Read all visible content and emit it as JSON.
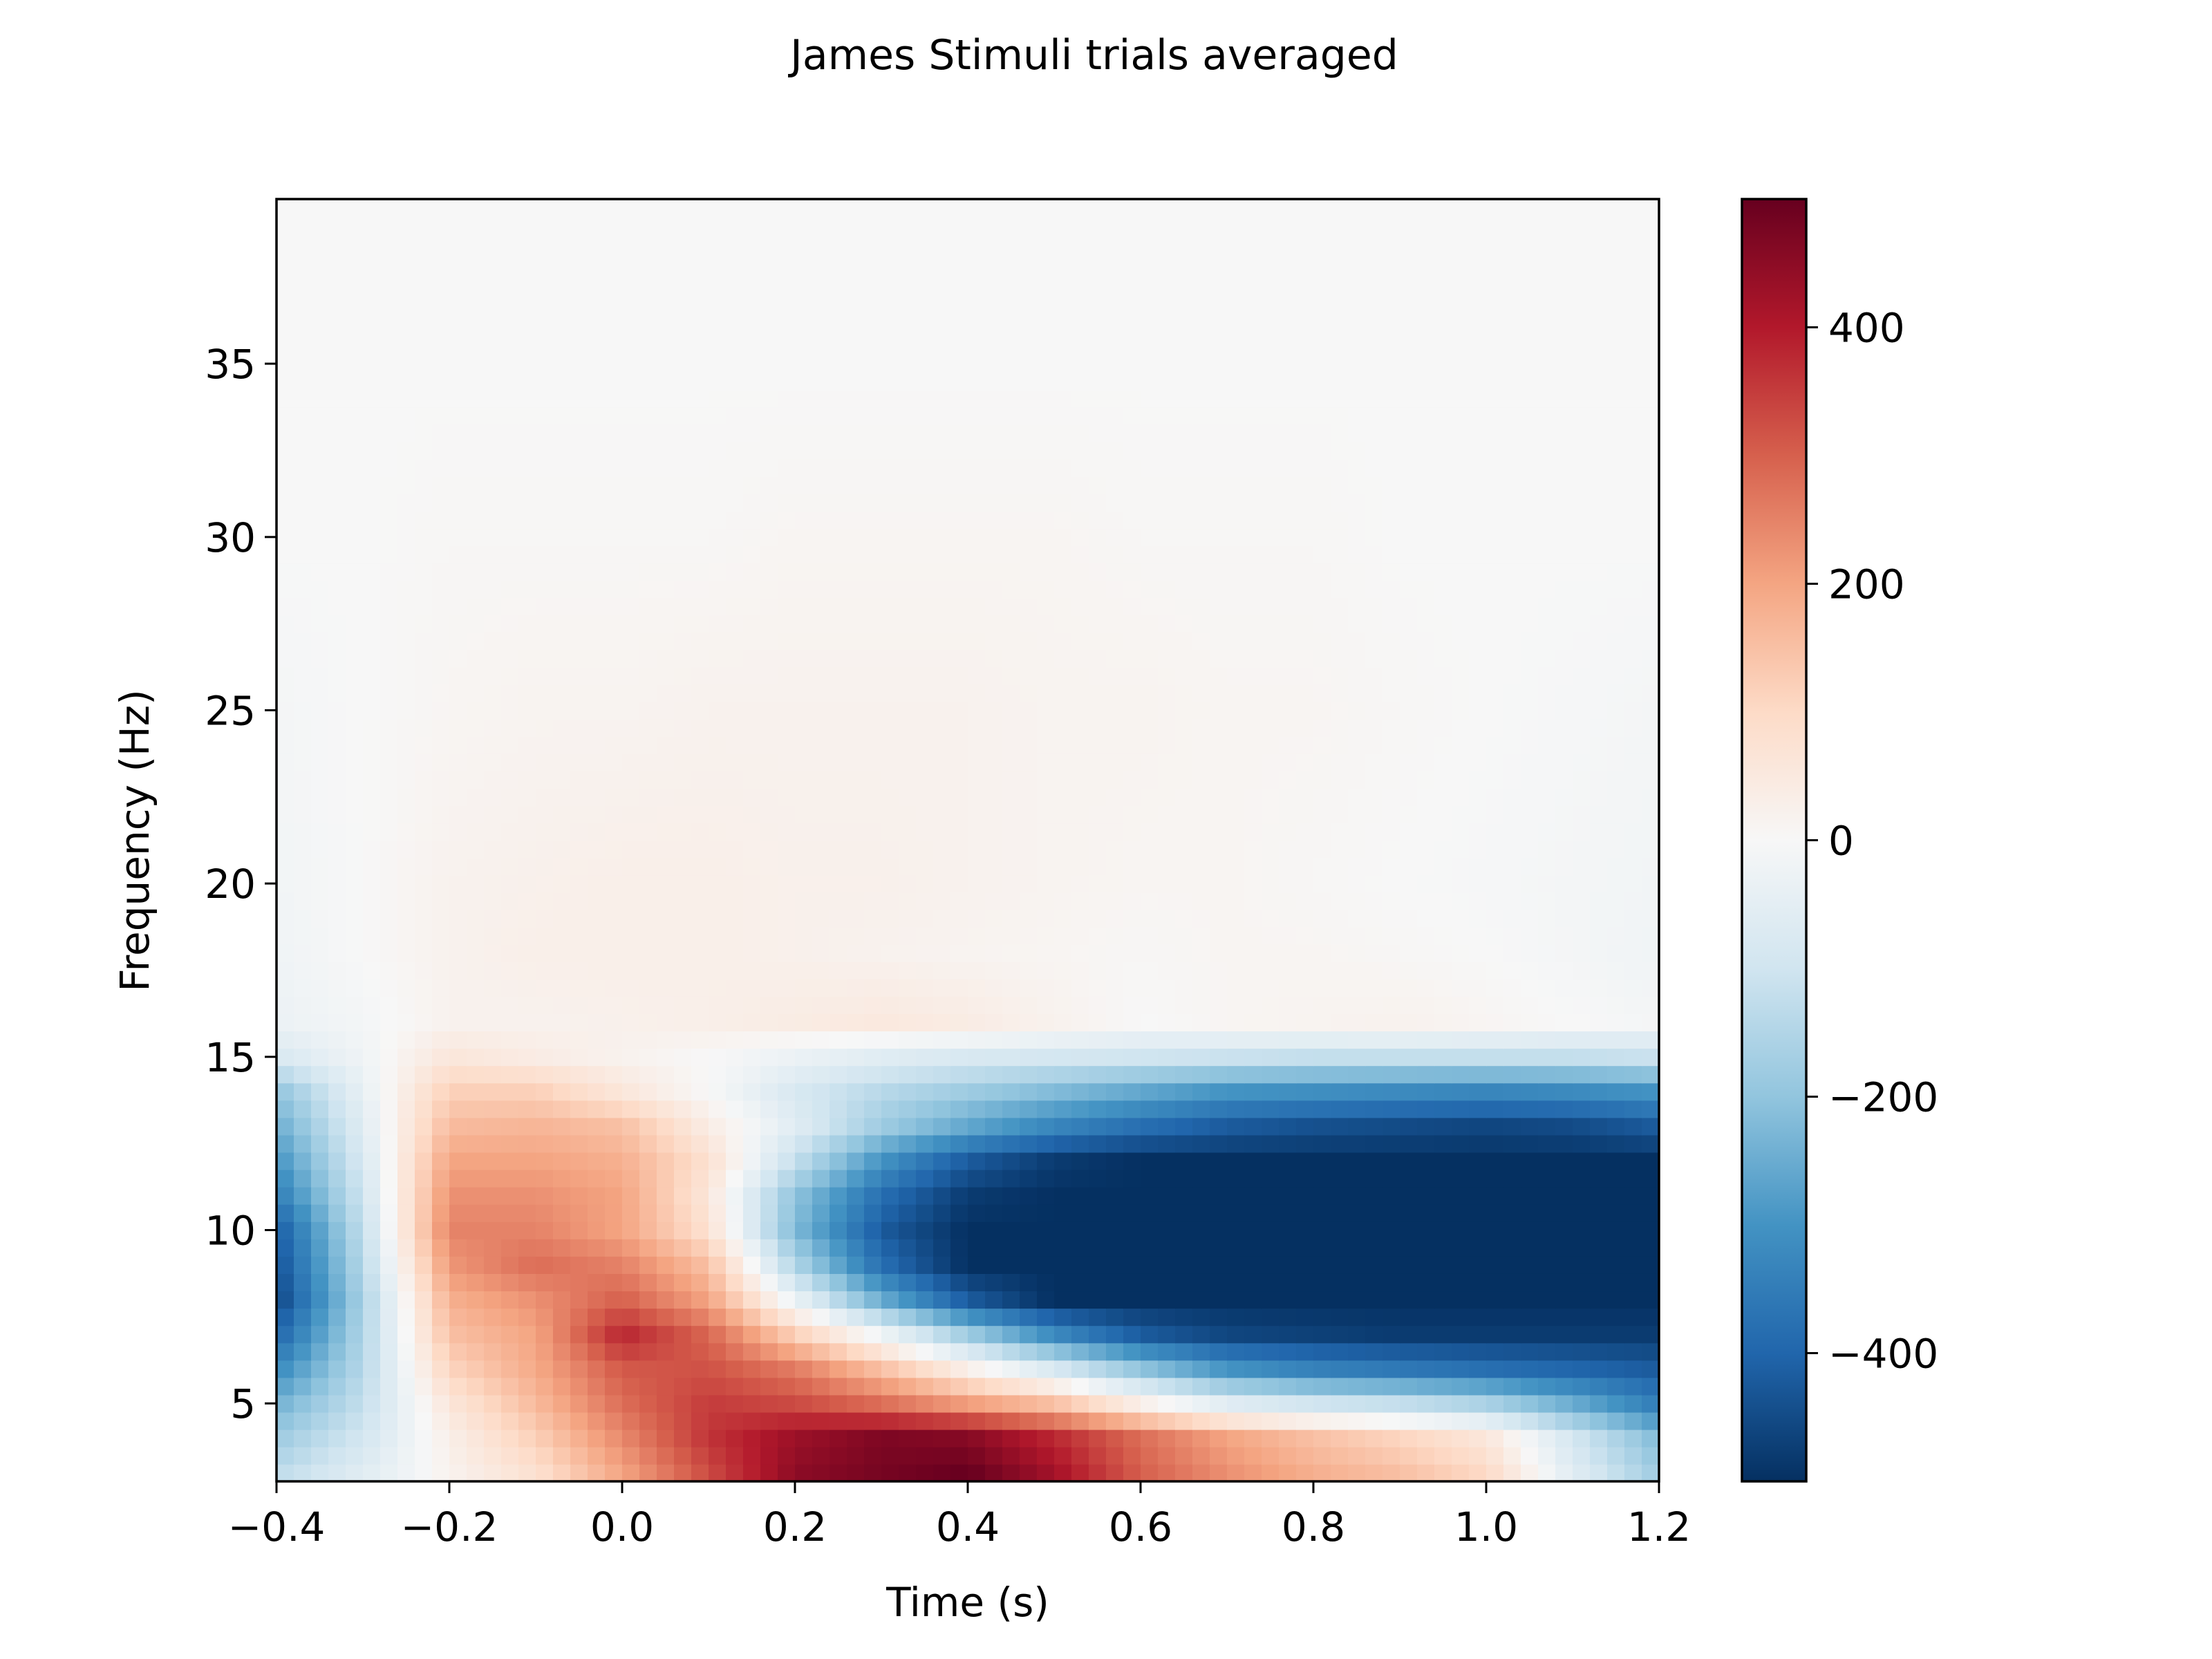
{
  "chart_data": {
    "type": "heatmap",
    "title": "James Stimuli trials averaged",
    "xlabel": "Time (s)",
    "ylabel": "Frequency (Hz)",
    "xlim": [
      -0.4,
      1.2
    ],
    "ylim": [
      2.75,
      39.75
    ],
    "x_ticks": [
      -0.4,
      -0.2,
      0.0,
      0.2,
      0.4,
      0.6,
      0.8,
      1.0,
      1.2
    ],
    "x_tick_labels": [
      "−0.4",
      "−0.2",
      "0.0",
      "0.2",
      "0.4",
      "0.6",
      "0.8",
      "1.0",
      "1.2"
    ],
    "y_ticks": [
      5,
      10,
      15,
      20,
      25,
      30,
      35
    ],
    "y_tick_labels": [
      "5",
      "10",
      "15",
      "20",
      "25",
      "30",
      "35"
    ],
    "colormap": "RdBu_r",
    "colorbar": {
      "vmin": -500,
      "vmax": 500,
      "ticks": [
        400,
        200,
        0,
        -200,
        -400
      ],
      "tick_labels": [
        "400",
        "200",
        "0",
        "−200",
        "−400"
      ]
    },
    "time_axis": [
      -0.4,
      -0.3,
      -0.2,
      -0.1,
      0.0,
      0.1,
      0.2,
      0.3,
      0.4,
      0.5,
      0.6,
      0.7,
      0.8,
      0.9,
      1.0,
      1.1,
      1.2
    ],
    "freq_axis": [
      3,
      4,
      5,
      6,
      7,
      8,
      9,
      10,
      11,
      12,
      13,
      14,
      15,
      16,
      18,
      20,
      25,
      30,
      35,
      39.5
    ],
    "values": [
      [
        -130,
        -60,
        20,
        80,
        200,
        330,
        450,
        480,
        500,
        420,
        300,
        230,
        180,
        150,
        100,
        -60,
        -180
      ],
      [
        -180,
        -90,
        30,
        120,
        240,
        360,
        430,
        470,
        460,
        380,
        280,
        200,
        150,
        110,
        60,
        -90,
        -220
      ],
      [
        -240,
        -120,
        60,
        160,
        280,
        350,
        330,
        280,
        210,
        150,
        30,
        -60,
        -100,
        -120,
        -160,
        -250,
        -350
      ],
      [
        -320,
        -140,
        110,
        190,
        310,
        320,
        260,
        150,
        30,
        -80,
        -200,
        -300,
        -340,
        -360,
        -380,
        -400,
        -420
      ],
      [
        -400,
        -150,
        150,
        200,
        380,
        290,
        120,
        -20,
        -180,
        -320,
        -420,
        -460,
        -470,
        -480,
        -480,
        -480,
        -480
      ],
      [
        -460,
        -160,
        180,
        230,
        300,
        200,
        -30,
        -250,
        -420,
        -500,
        -500,
        -500,
        -500,
        -500,
        -500,
        -500,
        -500
      ],
      [
        -440,
        -140,
        220,
        280,
        250,
        150,
        -150,
        -380,
        -500,
        -500,
        -500,
        -500,
        -500,
        -500,
        -500,
        -500,
        -500
      ],
      [
        -420,
        -120,
        250,
        250,
        200,
        80,
        -220,
        -420,
        -500,
        -500,
        -500,
        -500,
        -500,
        -500,
        -500,
        -500,
        -500
      ],
      [
        -350,
        -100,
        230,
        230,
        200,
        60,
        -200,
        -380,
        -480,
        -500,
        -500,
        -500,
        -500,
        -500,
        -500,
        -500,
        -500
      ],
      [
        -300,
        -80,
        200,
        200,
        180,
        80,
        -120,
        -300,
        -420,
        -480,
        -500,
        -500,
        -500,
        -500,
        -500,
        -500,
        -500
      ],
      [
        -250,
        -60,
        160,
        170,
        150,
        40,
        -60,
        -180,
        -260,
        -330,
        -380,
        -420,
        -440,
        -450,
        -460,
        -450,
        -420
      ],
      [
        -200,
        -40,
        120,
        120,
        60,
        0,
        -80,
        -140,
        -180,
        -220,
        -260,
        -300,
        -310,
        -320,
        -330,
        -320,
        -300
      ],
      [
        -80,
        -20,
        60,
        40,
        20,
        0,
        -30,
        -60,
        -80,
        -90,
        -100,
        -110,
        -120,
        -120,
        -120,
        -120,
        -110
      ],
      [
        -30,
        -10,
        20,
        20,
        25,
        30,
        40,
        50,
        40,
        20,
        0,
        10,
        15,
        20,
        10,
        0,
        -10
      ],
      [
        -20,
        0,
        20,
        30,
        30,
        30,
        25,
        20,
        15,
        10,
        5,
        10,
        10,
        5,
        0,
        -10,
        -20
      ],
      [
        -15,
        0,
        20,
        25,
        30,
        30,
        25,
        25,
        20,
        15,
        10,
        10,
        5,
        0,
        -5,
        -10,
        -15
      ],
      [
        -10,
        0,
        10,
        15,
        15,
        20,
        20,
        20,
        20,
        15,
        15,
        10,
        10,
        5,
        0,
        -5,
        -10
      ],
      [
        0,
        0,
        5,
        5,
        5,
        5,
        10,
        10,
        10,
        10,
        5,
        5,
        5,
        0,
        0,
        0,
        0
      ],
      [
        0,
        0,
        0,
        0,
        0,
        0,
        0,
        0,
        0,
        0,
        0,
        0,
        0,
        0,
        0,
        0,
        0
      ],
      [
        0,
        0,
        0,
        0,
        0,
        0,
        0,
        0,
        0,
        0,
        0,
        0,
        0,
        0,
        0,
        0,
        0
      ]
    ]
  }
}
